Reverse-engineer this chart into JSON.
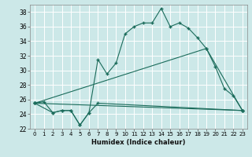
{
  "xlabel": "Humidex (Indice chaleur)",
  "bg_color": "#cce8e8",
  "line_color": "#1a6b5a",
  "grid_color": "#ffffff",
  "xlim": [
    -0.5,
    23.5
  ],
  "ylim": [
    22,
    39
  ],
  "xticks": [
    0,
    1,
    2,
    3,
    4,
    5,
    6,
    7,
    8,
    9,
    10,
    11,
    12,
    13,
    14,
    15,
    16,
    17,
    18,
    19,
    20,
    21,
    22,
    23
  ],
  "yticks": [
    22,
    24,
    26,
    28,
    30,
    32,
    34,
    36,
    38
  ],
  "series": [
    {
      "x": [
        0,
        1,
        2,
        3,
        4,
        5,
        6,
        7,
        8,
        9,
        10,
        11,
        12,
        13,
        14,
        15,
        16,
        17,
        18,
        19,
        20,
        21,
        22,
        23
      ],
      "y": [
        25.5,
        25.7,
        24.2,
        24.5,
        24.5,
        22.5,
        24.2,
        31.5,
        29.5,
        31,
        35,
        36,
        36.5,
        36.5,
        38.5,
        36,
        36.5,
        35.8,
        34.5,
        33,
        30.5,
        27.5,
        26.5,
        24.5
      ]
    },
    {
      "x": [
        0,
        2,
        3,
        4,
        5,
        6,
        7,
        23
      ],
      "y": [
        25.5,
        24.2,
        24.5,
        24.5,
        22.5,
        24.2,
        25.5,
        24.5
      ]
    },
    {
      "x": [
        0,
        19,
        23
      ],
      "y": [
        25.5,
        33,
        24.5
      ]
    },
    {
      "x": [
        0,
        23
      ],
      "y": [
        25.5,
        24.5
      ]
    }
  ]
}
